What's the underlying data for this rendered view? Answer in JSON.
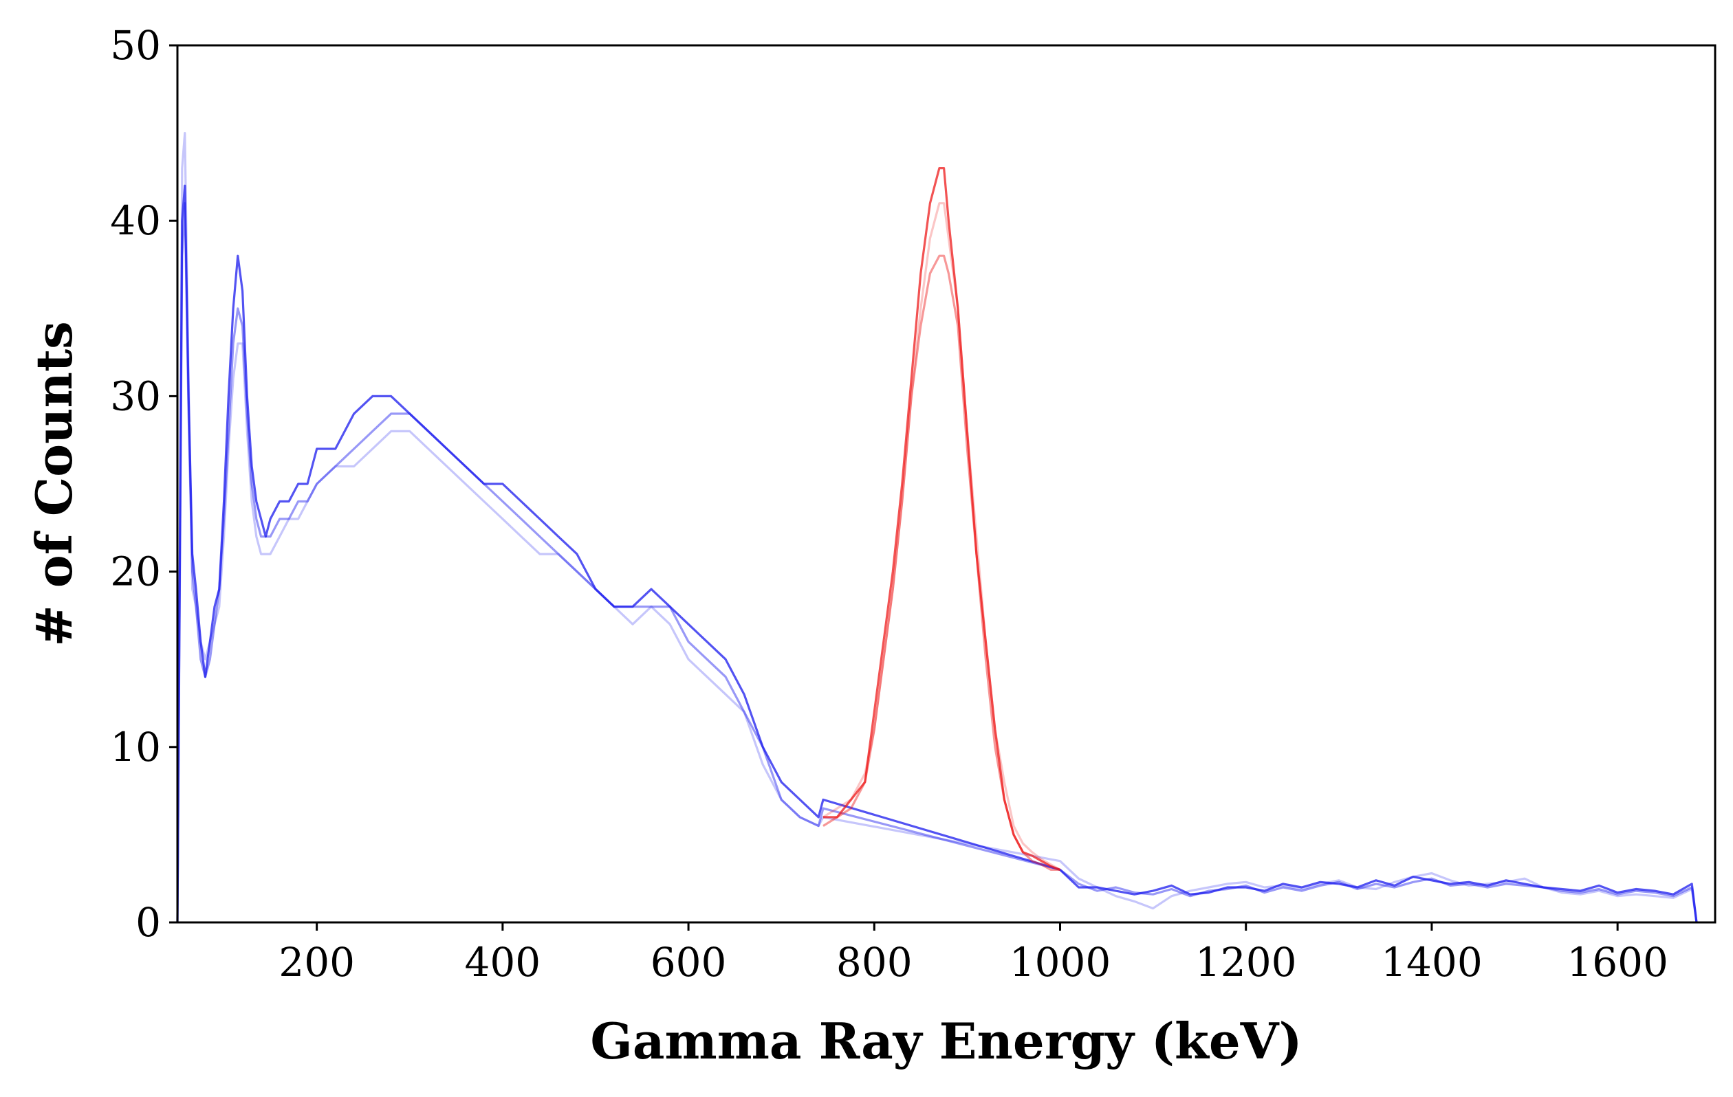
{
  "chart_data": {
    "type": "line",
    "title": "",
    "xlabel": "Gamma Ray Energy (keV)",
    "ylabel": "# of Counts",
    "xlim": [
      50,
      1705
    ],
    "ylim": [
      0,
      50
    ],
    "xticks": [
      200,
      400,
      600,
      800,
      1000,
      1200,
      1400,
      1600
    ],
    "yticks": [
      0,
      10,
      20,
      30,
      40,
      50
    ],
    "grid": false,
    "legend": "none",
    "colors": {
      "background": "#0000ee",
      "photopeak": "#ff2222"
    },
    "series": [
      {
        "role": "spectrum-dark",
        "color": "#1a1aee",
        "opacity": 0.75,
        "x": [
          50,
          55,
          58,
          62,
          66,
          70,
          75,
          80,
          85,
          90,
          95,
          100,
          105,
          110,
          115,
          120,
          125,
          130,
          135,
          140,
          145,
          150,
          160,
          170,
          180,
          190,
          200,
          220,
          240,
          260,
          280,
          300,
          320,
          340,
          360,
          380,
          400,
          420,
          440,
          460,
          480,
          500,
          520,
          540,
          560,
          580,
          600,
          620,
          640,
          660,
          680,
          700,
          720,
          740,
          745,
          1000,
          1020,
          1040,
          1060,
          1080,
          1100,
          1120,
          1140,
          1160,
          1180,
          1200,
          1220,
          1240,
          1260,
          1280,
          1300,
          1320,
          1340,
          1360,
          1380,
          1400,
          1420,
          1440,
          1460,
          1480,
          1500,
          1520,
          1540,
          1560,
          1580,
          1600,
          1620,
          1640,
          1660,
          1680,
          1685
        ],
        "y": [
          0,
          40,
          42,
          30,
          21,
          19,
          16,
          14,
          16,
          18,
          19,
          24,
          30,
          35,
          38,
          36,
          30,
          26,
          24,
          23,
          22,
          23,
          24,
          24,
          25,
          25,
          27,
          27,
          29,
          30,
          30,
          29,
          28,
          27,
          26,
          25,
          25,
          24,
          23,
          22,
          21,
          19,
          18,
          18,
          19,
          18,
          17,
          16,
          15,
          13,
          10,
          8,
          7,
          6,
          7,
          3,
          2,
          2,
          1.8,
          1.6,
          1.8,
          2.1,
          1.6,
          1.7,
          2,
          2,
          1.8,
          2.2,
          2,
          2.3,
          2.2,
          2,
          2.4,
          2.1,
          2.6,
          2.4,
          2.2,
          2.3,
          2.1,
          2.4,
          2.2,
          2,
          1.9,
          1.8,
          2.1,
          1.7,
          1.9,
          1.8,
          1.6,
          2.2,
          0
        ]
      },
      {
        "role": "spectrum-mid",
        "color": "#1a1aee",
        "opacity": 0.45,
        "x": [
          50,
          55,
          58,
          62,
          66,
          70,
          75,
          80,
          85,
          90,
          95,
          100,
          105,
          110,
          115,
          120,
          125,
          130,
          135,
          140,
          145,
          150,
          160,
          170,
          180,
          190,
          200,
          220,
          240,
          260,
          280,
          300,
          320,
          340,
          360,
          380,
          400,
          420,
          440,
          460,
          480,
          500,
          520,
          540,
          560,
          580,
          600,
          620,
          640,
          660,
          680,
          700,
          720,
          740,
          745,
          1000,
          1020,
          1040,
          1060,
          1080,
          1100,
          1120,
          1140,
          1160,
          1180,
          1200,
          1220,
          1240,
          1260,
          1280,
          1300,
          1320,
          1340,
          1360,
          1380,
          1400,
          1420,
          1440,
          1460,
          1480,
          1500,
          1520,
          1540,
          1560,
          1580,
          1600,
          1620,
          1640,
          1660,
          1680,
          1685
        ],
        "y": [
          0,
          38,
          41,
          29,
          20,
          18,
          15,
          14,
          15,
          17,
          19,
          23,
          28,
          33,
          35,
          34,
          29,
          25,
          23,
          22,
          22,
          22,
          23,
          23,
          24,
          24,
          25,
          26,
          27,
          28,
          29,
          29,
          28,
          27,
          26,
          25,
          24,
          23,
          22,
          21,
          20,
          19,
          18,
          18,
          18,
          18,
          16,
          15,
          14,
          12,
          10,
          7,
          6,
          5.5,
          6.5,
          3,
          2.2,
          1.8,
          2,
          1.7,
          1.6,
          1.9,
          1.5,
          1.8,
          1.9,
          2.1,
          1.7,
          2,
          1.8,
          2.1,
          2.3,
          1.9,
          2.2,
          2,
          2.3,
          2.5,
          2.1,
          2.2,
          2,
          2.2,
          2.1,
          2,
          1.8,
          1.7,
          1.9,
          1.6,
          1.8,
          1.7,
          1.5,
          2,
          0
        ]
      },
      {
        "role": "spectrum-light",
        "color": "#1a1aee",
        "opacity": 0.25,
        "x": [
          50,
          55,
          58,
          62,
          66,
          70,
          75,
          80,
          85,
          90,
          95,
          100,
          105,
          110,
          115,
          120,
          125,
          130,
          135,
          140,
          145,
          150,
          160,
          170,
          180,
          190,
          200,
          220,
          240,
          260,
          280,
          300,
          320,
          340,
          360,
          380,
          400,
          420,
          440,
          460,
          480,
          500,
          520,
          540,
          560,
          580,
          600,
          620,
          640,
          660,
          680,
          700,
          720,
          740,
          745,
          1000,
          1020,
          1040,
          1060,
          1080,
          1100,
          1120,
          1140,
          1160,
          1180,
          1200,
          1220,
          1240,
          1260,
          1280,
          1300,
          1320,
          1340,
          1360,
          1380,
          1400,
          1420,
          1440,
          1460,
          1480,
          1500,
          1520,
          1540,
          1560,
          1580,
          1600,
          1620,
          1640,
          1660,
          1680,
          1685
        ],
        "y": [
          0,
          43,
          45,
          31,
          19,
          18,
          16,
          15,
          16,
          17,
          18,
          22,
          27,
          31,
          33,
          33,
          28,
          24,
          22,
          21,
          21,
          21,
          22,
          23,
          23,
          24,
          25,
          26,
          26,
          27,
          28,
          28,
          27,
          26,
          25,
          24,
          23,
          22,
          21,
          21,
          20,
          19,
          18,
          17,
          18,
          17,
          15,
          14,
          13,
          12,
          9,
          7,
          6,
          5.5,
          6,
          3.5,
          2.5,
          2,
          1.5,
          1.2,
          0.8,
          1.5,
          1.8,
          2,
          2.2,
          2.3,
          2,
          2.1,
          1.9,
          2.2,
          2.4,
          2,
          1.9,
          2.3,
          2.6,
          2.8,
          2.4,
          2.1,
          2.2,
          2.3,
          2.5,
          2,
          1.7,
          1.6,
          1.8,
          1.5,
          1.6,
          1.5,
          1.4,
          1.9,
          0
        ]
      },
      {
        "role": "photopeak-dark",
        "color": "#ee1a1a",
        "opacity": 0.75,
        "x": [
          745,
          760,
          775,
          790,
          800,
          810,
          820,
          830,
          840,
          850,
          860,
          870,
          875,
          880,
          890,
          900,
          910,
          920,
          930,
          940,
          950,
          960,
          970,
          980,
          990,
          1000
        ],
        "y": [
          6,
          6,
          7,
          8,
          12,
          16,
          20,
          25,
          31,
          37,
          41,
          43,
          43,
          40,
          35,
          28,
          21,
          16,
          11,
          7,
          5,
          4,
          3.8,
          3.5,
          3.2,
          3
        ]
      },
      {
        "role": "photopeak-mid",
        "color": "#ee1a1a",
        "opacity": 0.45,
        "x": [
          745,
          760,
          775,
          790,
          800,
          810,
          820,
          830,
          840,
          850,
          860,
          870,
          875,
          880,
          890,
          900,
          910,
          920,
          930,
          940,
          950,
          960,
          970,
          980,
          990,
          1000
        ],
        "y": [
          5.5,
          6,
          6.5,
          8,
          11,
          15,
          19,
          24,
          30,
          34,
          37,
          38,
          38,
          37,
          34,
          27,
          21,
          15,
          10,
          7,
          5,
          4,
          3.5,
          3.3,
          3,
          3
        ]
      },
      {
        "role": "photopeak-light",
        "color": "#ee1a1a",
        "opacity": 0.25,
        "x": [
          745,
          760,
          775,
          790,
          800,
          810,
          820,
          830,
          840,
          850,
          860,
          870,
          875,
          880,
          890,
          900,
          910,
          920,
          930,
          940,
          950,
          960,
          970,
          980,
          990,
          1000
        ],
        "y": [
          6,
          6.5,
          7,
          8.5,
          11,
          15,
          19,
          24,
          30,
          35,
          39,
          41,
          41,
          39,
          35,
          28,
          22,
          16,
          11,
          8,
          5.5,
          4.5,
          4,
          3.6,
          3.3,
          3
        ]
      }
    ]
  }
}
